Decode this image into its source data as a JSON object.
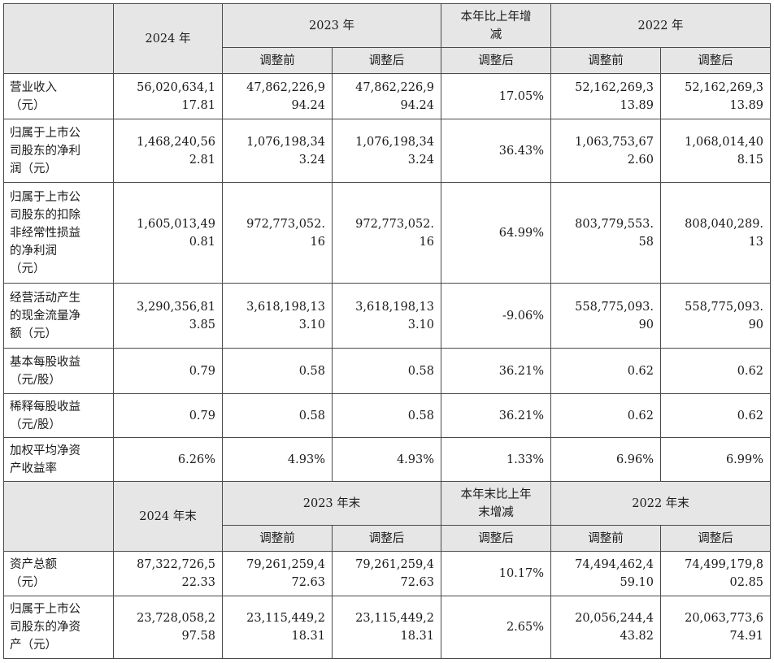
{
  "header1": {
    "blank": "",
    "y2024": "2024 年",
    "y2023": "2023 年",
    "change": [
      "本年比上年增",
      "减"
    ],
    "y2022": "2022 年",
    "sub": [
      "调整前",
      "调整后",
      "调整后",
      "调整前",
      "调整后"
    ]
  },
  "rows1": [
    {
      "label": [
        "营业收入",
        "（元）"
      ],
      "cells": [
        [
          "56,020,634,1",
          "17.81"
        ],
        [
          "47,862,226,9",
          "94.24"
        ],
        [
          "47,862,226,9",
          "94.24"
        ],
        [
          "17.05%"
        ],
        [
          "52,162,269,3",
          "13.89"
        ],
        [
          "52,162,269,3",
          "13.89"
        ]
      ]
    },
    {
      "label": [
        "归属于上市公",
        "司股东的净利",
        "润（元）"
      ],
      "cells": [
        [
          "1,468,240,56",
          "2.81"
        ],
        [
          "1,076,198,34",
          "3.24"
        ],
        [
          "1,076,198,34",
          "3.24"
        ],
        [
          "36.43%"
        ],
        [
          "1,063,753,67",
          "2.60"
        ],
        [
          "1,068,014,40",
          "8.15"
        ]
      ]
    },
    {
      "label": [
        "归属于上市公",
        "司股东的扣除",
        "非经常性损益",
        "的净利润",
        "（元）"
      ],
      "cells": [
        [
          "1,605,013,49",
          "0.81"
        ],
        [
          "972,773,052.",
          "16"
        ],
        [
          "972,773,052.",
          "16"
        ],
        [
          "64.99%"
        ],
        [
          "803,779,553.",
          "58"
        ],
        [
          "808,040,289.",
          "13"
        ]
      ]
    },
    {
      "label": [
        "经营活动产生",
        "的现金流量净",
        "额（元）"
      ],
      "cells": [
        [
          "3,290,356,81",
          "3.85"
        ],
        [
          "3,618,198,13",
          "3.10"
        ],
        [
          "3,618,198,13",
          "3.10"
        ],
        [
          "-9.06%"
        ],
        [
          "558,775,093.",
          "90"
        ],
        [
          "558,775,093.",
          "90"
        ]
      ]
    },
    {
      "label": [
        "基本每股收益",
        "（元/股）"
      ],
      "cells": [
        [
          "0.79"
        ],
        [
          "0.58"
        ],
        [
          "0.58"
        ],
        [
          "36.21%"
        ],
        [
          "0.62"
        ],
        [
          "0.62"
        ]
      ]
    },
    {
      "label": [
        "稀释每股收益",
        "（元/股）"
      ],
      "cells": [
        [
          "0.79"
        ],
        [
          "0.58"
        ],
        [
          "0.58"
        ],
        [
          "36.21%"
        ],
        [
          "0.62"
        ],
        [
          "0.62"
        ]
      ]
    },
    {
      "label": [
        "加权平均净资",
        "产收益率"
      ],
      "cells": [
        [
          "6.26%"
        ],
        [
          "4.93%"
        ],
        [
          "4.93%"
        ],
        [
          "1.33%"
        ],
        [
          "6.96%"
        ],
        [
          "6.99%"
        ]
      ]
    }
  ],
  "header2": {
    "blank": "",
    "y2024": "2024 年末",
    "y2023": "2023 年末",
    "change": [
      "本年末比上年",
      "末增减"
    ],
    "y2022": "2022 年末",
    "sub": [
      "调整前",
      "调整后",
      "调整后",
      "调整前",
      "调整后"
    ]
  },
  "rows2": [
    {
      "label": [
        "资产总额",
        "（元）"
      ],
      "cells": [
        [
          "87,322,726,5",
          "22.33"
        ],
        [
          "79,261,259,4",
          "72.63"
        ],
        [
          "79,261,259,4",
          "72.63"
        ],
        [
          "10.17%"
        ],
        [
          "74,494,462,4",
          "59.10"
        ],
        [
          "74,499,179,8",
          "02.85"
        ]
      ]
    },
    {
      "label": [
        "归属于上市公",
        "司股东的净资",
        "产（元）"
      ],
      "cells": [
        [
          "23,728,058,2",
          "97.58"
        ],
        [
          "23,115,449,2",
          "18.31"
        ],
        [
          "23,115,449,2",
          "18.31"
        ],
        [
          "2.65%"
        ],
        [
          "20,056,244,4",
          "43.82"
        ],
        [
          "20,063,773,6",
          "74.91"
        ]
      ]
    }
  ]
}
